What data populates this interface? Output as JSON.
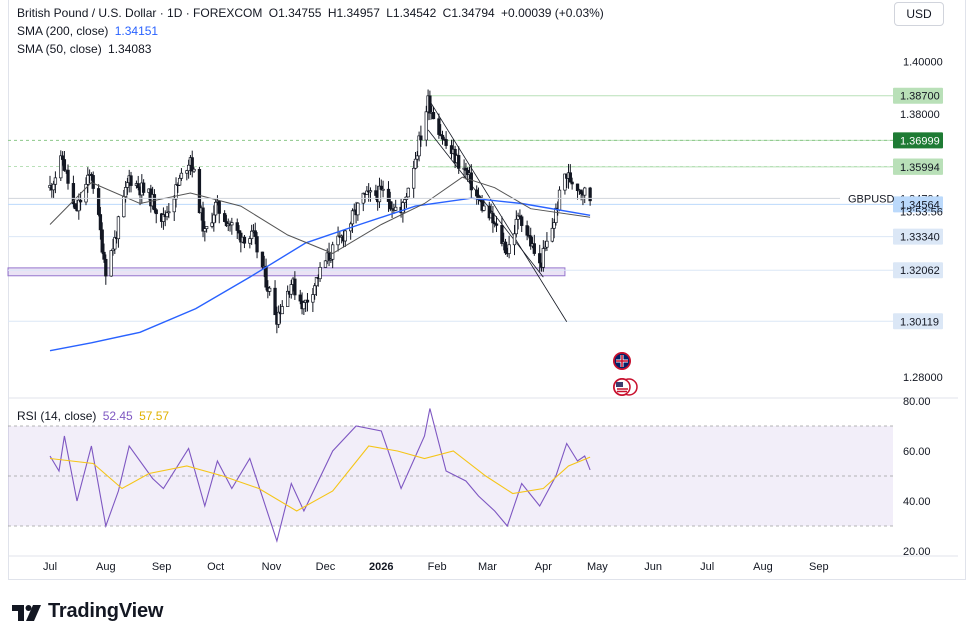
{
  "header": {
    "symbol": "British Pound / U.S. Dollar · 1D · FOREXCOM",
    "ohlc": [
      {
        "label": "O",
        "value": "1.34755"
      },
      {
        "label": "H",
        "value": "1.34957"
      },
      {
        "label": "L",
        "value": "1.34542"
      },
      {
        "label": "C",
        "value": "1.34794"
      }
    ],
    "change": "+0.00039 (+0.03%)",
    "sma200_label": "SMA (200, close)",
    "sma200_value": "1.34151",
    "sma50_label": "SMA (50, close)",
    "sma50_value": "1.34083"
  },
  "currency_button": "USD",
  "rsi": {
    "label": "RSI (14, close)",
    "value": "52.45",
    "ma_value": "57.57"
  },
  "logo_text": "TradingView",
  "chart_data": {
    "type": "line",
    "title": "British Pound / U.S. Dollar · 1D · FOREXCOM",
    "symbol": "GBPUSD",
    "last_price": "1.34794",
    "countdown": "13:53:56",
    "price_axis": {
      "ticks": [
        "1.40000",
        "1.28000"
      ],
      "ylim": [
        1.272,
        1.412
      ]
    },
    "time_axis": {
      "labels": [
        "Jul",
        "Aug",
        "Sep",
        "Oct",
        "Nov",
        "Dec",
        "2026",
        "Feb",
        "Mar",
        "Apr",
        "May",
        "Jun",
        "Jul",
        "Aug",
        "Sep"
      ],
      "start": "2025-07-01",
      "end": "2026-09-30",
      "last_bar": "2026-04-27"
    },
    "levels": [
      {
        "label": "1.38700",
        "value": 1.387,
        "color": "#b9e0b8",
        "text_color": "#131722"
      },
      {
        "label": "1.38000",
        "value": 1.38,
        "color": null,
        "text_color": "#131722"
      },
      {
        "label": "1.37000",
        "value": 1.37,
        "color": "#b9e0b8",
        "text_color": "#131722"
      },
      {
        "label": "1.36999",
        "value": 1.36999,
        "color": "#1e7b34",
        "text_color": "#ffffff"
      },
      {
        "label": "1.36006",
        "value": 1.36006,
        "color": "#b9e0b8",
        "text_color": "#131722"
      },
      {
        "label": "1.35994",
        "value": 1.35994,
        "color": "#b9e0b8",
        "text_color": "#131722"
      },
      {
        "label": "1.34794",
        "value": 1.34794,
        "color": null,
        "text_color": "#131722"
      },
      {
        "label": "1.34564",
        "value": 1.34564,
        "color": "#bbd9fb",
        "text_color": "#131722"
      },
      {
        "label": "1.33340",
        "value": 1.3334,
        "color": "#dbe7f6",
        "text_color": "#131722"
      },
      {
        "label": "1.32062",
        "value": 1.32062,
        "color": "#dbe7f6",
        "text_color": "#131722"
      },
      {
        "label": "1.30119",
        "value": 1.30119,
        "color": "#dbe7f6",
        "text_color": "#131722"
      }
    ],
    "price_key": [
      {
        "date": "2025-07-01",
        "value": 1.352
      },
      {
        "date": "2025-07-08",
        "value": 1.363
      },
      {
        "date": "2025-07-15",
        "value": 1.342
      },
      {
        "date": "2025-07-24",
        "value": 1.358
      },
      {
        "date": "2025-08-01",
        "value": 1.321
      },
      {
        "date": "2025-08-06",
        "value": 1.332
      },
      {
        "date": "2025-08-14",
        "value": 1.356
      },
      {
        "date": "2025-08-26",
        "value": 1.348
      },
      {
        "date": "2025-09-02",
        "value": 1.34
      },
      {
        "date": "2025-09-17",
        "value": 1.364
      },
      {
        "date": "2025-09-25",
        "value": 1.334
      },
      {
        "date": "2025-10-01",
        "value": 1.345
      },
      {
        "date": "2025-10-14",
        "value": 1.334
      },
      {
        "date": "2025-10-22",
        "value": 1.333
      },
      {
        "date": "2025-11-04",
        "value": 1.303
      },
      {
        "date": "2025-11-12",
        "value": 1.316
      },
      {
        "date": "2025-11-19",
        "value": 1.307
      },
      {
        "date": "2025-12-01",
        "value": 1.324
      },
      {
        "date": "2025-12-10",
        "value": 1.333
      },
      {
        "date": "2025-12-22",
        "value": 1.348
      },
      {
        "date": "2026-01-02",
        "value": 1.35
      },
      {
        "date": "2026-01-12",
        "value": 1.342
      },
      {
        "date": "2026-01-23",
        "value": 1.372
      },
      {
        "date": "2026-01-27",
        "value": 1.385
      },
      {
        "date": "2026-02-06",
        "value": 1.368
      },
      {
        "date": "2026-02-17",
        "value": 1.358
      },
      {
        "date": "2026-02-24",
        "value": 1.347
      },
      {
        "date": "2026-03-03",
        "value": 1.34
      },
      {
        "date": "2026-03-12",
        "value": 1.328
      },
      {
        "date": "2026-03-19",
        "value": 1.342
      },
      {
        "date": "2026-03-30",
        "value": 1.322
      },
      {
        "date": "2026-04-06",
        "value": 1.337
      },
      {
        "date": "2026-04-13",
        "value": 1.357
      },
      {
        "date": "2026-04-20",
        "value": 1.353
      },
      {
        "date": "2026-04-27",
        "value": 1.348
      }
    ],
    "series": [
      {
        "name": "SMA (200, close)",
        "color": "#2962ff",
        "points": [
          {
            "date": "2025-07-01",
            "value": 1.29
          },
          {
            "date": "2025-07-24",
            "value": 1.293
          },
          {
            "date": "2025-08-20",
            "value": 1.297
          },
          {
            "date": "2025-09-20",
            "value": 1.306
          },
          {
            "date": "2025-10-20",
            "value": 1.318
          },
          {
            "date": "2025-11-20",
            "value": 1.331
          },
          {
            "date": "2025-12-20",
            "value": 1.338
          },
          {
            "date": "2026-01-20",
            "value": 1.345
          },
          {
            "date": "2026-02-20",
            "value": 1.348
          },
          {
            "date": "2026-03-20",
            "value": 1.346
          },
          {
            "date": "2026-04-27",
            "value": 1.3415
          }
        ]
      },
      {
        "name": "SMA (50, close)",
        "color": "#555555",
        "points": [
          {
            "date": "2025-07-01",
            "value": 1.338
          },
          {
            "date": "2025-07-24",
            "value": 1.354
          },
          {
            "date": "2025-08-20",
            "value": 1.346
          },
          {
            "date": "2025-09-17",
            "value": 1.35
          },
          {
            "date": "2025-10-15",
            "value": 1.345
          },
          {
            "date": "2025-11-10",
            "value": 1.334
          },
          {
            "date": "2025-12-05",
            "value": 1.327
          },
          {
            "date": "2026-01-01",
            "value": 1.338
          },
          {
            "date": "2026-01-25",
            "value": 1.346
          },
          {
            "date": "2026-02-15",
            "value": 1.356
          },
          {
            "date": "2026-03-05",
            "value": 1.352
          },
          {
            "date": "2026-03-25",
            "value": 1.344
          },
          {
            "date": "2026-04-27",
            "value": 1.3408
          }
        ]
      }
    ],
    "drawings": {
      "support_zone": {
        "from": "2025-07-01",
        "to": "2026-04-13",
        "low": 1.3185,
        "high": 1.3215
      },
      "channel_lines": [
        [
          {
            "date": "2026-01-27",
            "value": 1.386
          },
          {
            "date": "2026-04-14",
            "value": 1.301
          }
        ],
        [
          {
            "date": "2026-01-27",
            "value": 1.374
          },
          {
            "date": "2026-04-01",
            "value": 1.318
          }
        ]
      ],
      "dashed_levels": [
        1.37,
        1.36
      ],
      "flag_icons": [
        "uk-flag-icon",
        "us-flag-icon"
      ]
    },
    "rsi": {
      "label": "RSI (14, close)",
      "ticks": [
        "80.00",
        "60.00",
        "40.00",
        "20.00"
      ],
      "ylim": [
        20,
        80
      ],
      "band": [
        30,
        70
      ],
      "series": [
        {
          "name": "RSI",
          "color": "#7e57c2",
          "points": [
            {
              "date": "2025-07-01",
              "value": 58
            },
            {
              "date": "2025-07-06",
              "value": 52
            },
            {
              "date": "2025-07-09",
              "value": 66
            },
            {
              "date": "2025-07-16",
              "value": 40
            },
            {
              "date": "2025-07-24",
              "value": 62
            },
            {
              "date": "2025-08-01",
              "value": 30
            },
            {
              "date": "2025-08-08",
              "value": 44
            },
            {
              "date": "2025-08-14",
              "value": 62
            },
            {
              "date": "2025-08-27",
              "value": 49
            },
            {
              "date": "2025-09-02",
              "value": 45
            },
            {
              "date": "2025-09-16",
              "value": 61
            },
            {
              "date": "2025-09-25",
              "value": 38
            },
            {
              "date": "2025-10-02",
              "value": 56
            },
            {
              "date": "2025-10-10",
              "value": 45
            },
            {
              "date": "2025-10-20",
              "value": 57
            },
            {
              "date": "2025-11-04",
              "value": 24
            },
            {
              "date": "2025-11-12",
              "value": 47
            },
            {
              "date": "2025-11-19",
              "value": 36
            },
            {
              "date": "2025-12-05",
              "value": 60
            },
            {
              "date": "2025-12-18",
              "value": 70
            },
            {
              "date": "2026-01-01",
              "value": 68
            },
            {
              "date": "2026-01-12",
              "value": 45
            },
            {
              "date": "2026-01-25",
              "value": 66
            },
            {
              "date": "2026-01-28",
              "value": 77
            },
            {
              "date": "2026-02-06",
              "value": 52
            },
            {
              "date": "2026-02-17",
              "value": 48
            },
            {
              "date": "2026-02-24",
              "value": 42
            },
            {
              "date": "2026-03-05",
              "value": 36
            },
            {
              "date": "2026-03-12",
              "value": 30
            },
            {
              "date": "2026-03-20",
              "value": 47
            },
            {
              "date": "2026-03-30",
              "value": 38
            },
            {
              "date": "2026-04-08",
              "value": 50
            },
            {
              "date": "2026-04-14",
              "value": 63
            },
            {
              "date": "2026-04-20",
              "value": 56
            },
            {
              "date": "2026-04-24",
              "value": 58
            },
            {
              "date": "2026-04-27",
              "value": 52.45
            }
          ]
        },
        {
          "name": "RSI MA",
          "color": "#f5c518",
          "points": [
            {
              "date": "2025-07-01",
              "value": 57
            },
            {
              "date": "2025-07-25",
              "value": 55
            },
            {
              "date": "2025-08-10",
              "value": 45
            },
            {
              "date": "2025-08-25",
              "value": 51
            },
            {
              "date": "2025-09-15",
              "value": 54
            },
            {
              "date": "2025-10-05",
              "value": 50
            },
            {
              "date": "2025-10-25",
              "value": 45
            },
            {
              "date": "2025-11-15",
              "value": 36
            },
            {
              "date": "2025-12-05",
              "value": 44
            },
            {
              "date": "2025-12-25",
              "value": 62
            },
            {
              "date": "2026-01-10",
              "value": 60
            },
            {
              "date": "2026-01-25",
              "value": 57
            },
            {
              "date": "2026-02-10",
              "value": 60
            },
            {
              "date": "2026-02-28",
              "value": 50
            },
            {
              "date": "2026-03-15",
              "value": 43
            },
            {
              "date": "2026-04-01",
              "value": 45
            },
            {
              "date": "2026-04-15",
              "value": 54
            },
            {
              "date": "2026-04-27",
              "value": 57.57
            }
          ]
        }
      ]
    }
  }
}
